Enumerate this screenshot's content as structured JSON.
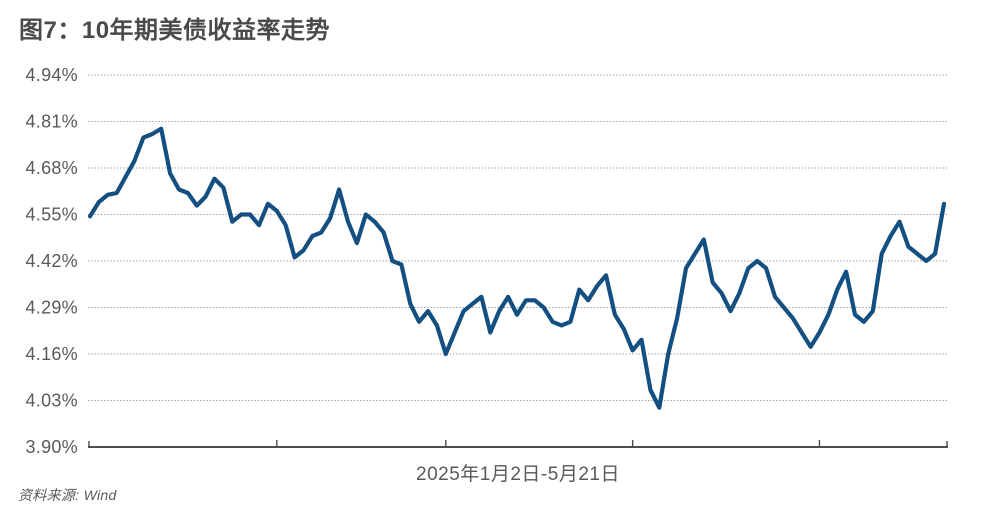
{
  "header": {
    "title": "图7：10年期美债收益率走势"
  },
  "footer": {
    "source": "资料来源: Wind"
  },
  "colors": {
    "line": "#134F80",
    "title_text": "#4A4A4A",
    "axis_text": "#595959",
    "gridline": "#9E9E9E",
    "axis_line": "#4D4D4D",
    "background": "#FFFFFF"
  },
  "chart_data": {
    "type": "line",
    "title": "图7：10年期美债收益率走势",
    "series_name": "10年期美债收益率",
    "x_range_label": "2025年1月2日-5月21日",
    "x_description": "97 trading days, evenly spaced, 2025-01-02 to 2025-05-21",
    "unit": "%",
    "ylim": [
      3.9,
      4.94
    ],
    "yticks": [
      "4.94%",
      "4.81%",
      "4.68%",
      "4.55%",
      "4.42%",
      "4.29%",
      "4.16%",
      "4.03%",
      "3.90%"
    ],
    "ytick_values": [
      4.94,
      4.81,
      4.68,
      4.55,
      4.42,
      4.29,
      4.16,
      4.03,
      3.9
    ],
    "grid": "horizontal-dotted",
    "legend": "none",
    "month_tick_indices": [
      21,
      40,
      61,
      82
    ],
    "values": [
      4.545,
      4.585,
      4.605,
      4.61,
      4.655,
      4.7,
      4.765,
      4.775,
      4.79,
      4.665,
      4.62,
      4.61,
      4.575,
      4.6,
      4.65,
      4.625,
      4.53,
      4.55,
      4.55,
      4.52,
      4.58,
      4.56,
      4.52,
      4.43,
      4.45,
      4.49,
      4.5,
      4.54,
      4.62,
      4.53,
      4.47,
      4.55,
      4.53,
      4.5,
      4.42,
      4.41,
      4.3,
      4.25,
      4.28,
      4.24,
      4.16,
      4.22,
      4.28,
      4.3,
      4.32,
      4.22,
      4.28,
      4.32,
      4.27,
      4.31,
      4.31,
      4.29,
      4.25,
      4.24,
      4.25,
      4.34,
      4.31,
      4.35,
      4.38,
      4.27,
      4.23,
      4.17,
      4.2,
      4.06,
      4.01,
      4.16,
      4.26,
      4.4,
      4.44,
      4.48,
      4.36,
      4.33,
      4.28,
      4.33,
      4.4,
      4.42,
      4.4,
      4.32,
      4.29,
      4.26,
      4.22,
      4.18,
      4.22,
      4.27,
      4.34,
      4.39,
      4.27,
      4.25,
      4.28,
      4.44,
      4.49,
      4.53,
      4.46,
      4.44,
      4.42,
      4.44,
      4.58
    ]
  }
}
